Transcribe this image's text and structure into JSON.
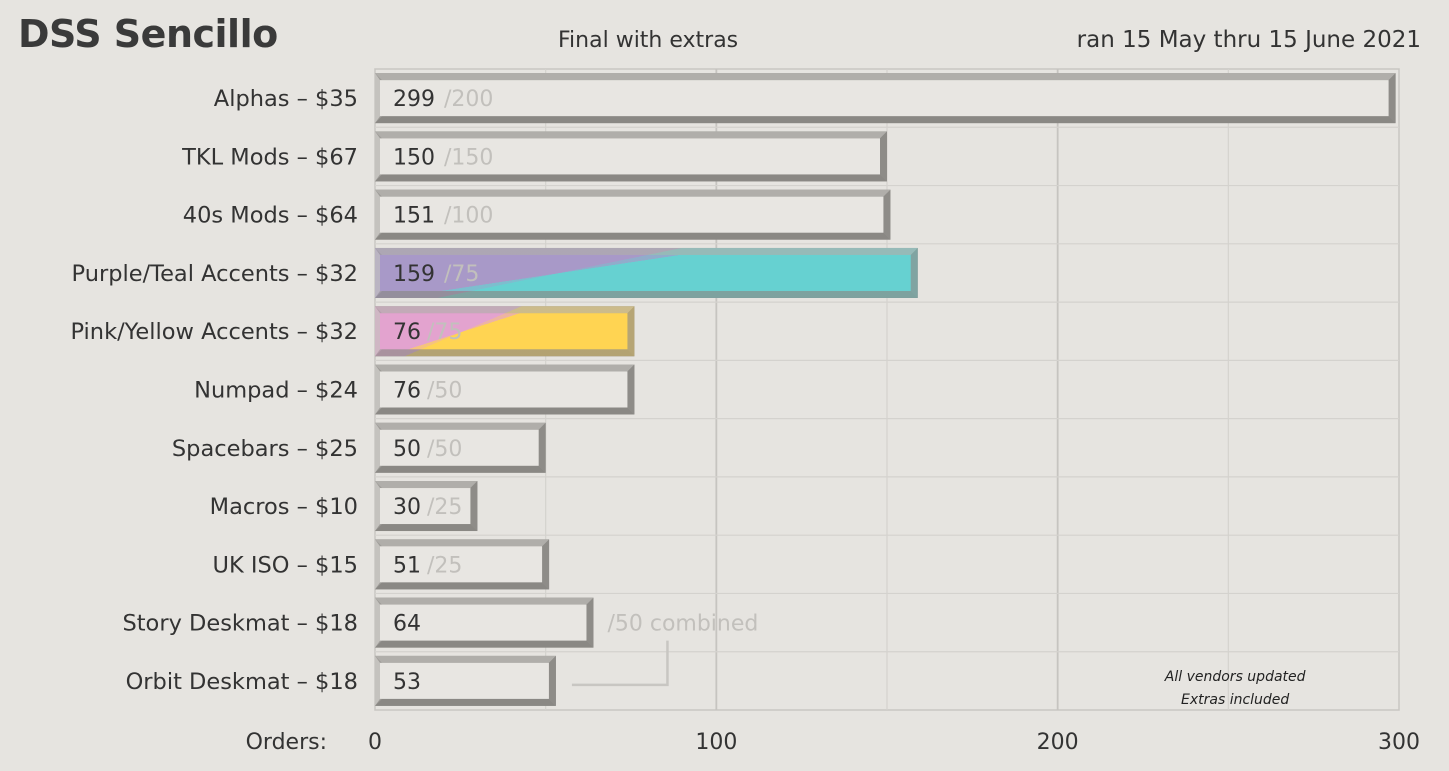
{
  "header": {
    "title": "DSS Sencillo",
    "subtitle": "Final with extras",
    "daterange": "ran 15 May thru 15 June 2021"
  },
  "chart_data": {
    "type": "bar",
    "orientation": "horizontal",
    "xlabel": "Orders:",
    "xlim": [
      0,
      300
    ],
    "xticks": [
      0,
      100,
      200,
      300
    ],
    "grid": true,
    "categories": [
      "Alphas – $35",
      "TKL Mods – $67",
      "40s Mods – $64",
      "Purple/Teal Accents – $32",
      "Pink/Yellow Accents – $32",
      "Numpad – $24",
      "Spacebars – $25",
      "Macros – $10",
      "UK ISO – $15",
      "Story Deskmat – $18",
      "Orbit Deskmat – $18"
    ],
    "values": [
      299,
      150,
      151,
      159,
      76,
      76,
      50,
      30,
      51,
      64,
      53
    ],
    "value_labels": [
      "299",
      "150",
      "151",
      "159",
      "76",
      "76",
      "50",
      "30",
      "51",
      "64",
      "53"
    ],
    "goal_labels": [
      "/200",
      "/150",
      "/100",
      "/75",
      "/75",
      "/50",
      "/50",
      "/25",
      "/25",
      "",
      ""
    ],
    "bar_fills": [
      [
        "#e8e6e2"
      ],
      [
        "#e8e6e2"
      ],
      [
        "#e8e6e2"
      ],
      [
        "#a899c8",
        "#66d1d1"
      ],
      [
        "#e3a3cf",
        "#ffd452"
      ],
      [
        "#e8e6e2"
      ],
      [
        "#e8e6e2"
      ],
      [
        "#e8e6e2"
      ],
      [
        "#e8e6e2"
      ],
      [
        "#e8e6e2"
      ],
      [
        "#e8e6e2"
      ]
    ],
    "combined_note": "/50 combined",
    "annotations": [
      "All vendors updated",
      "Extras included"
    ]
  }
}
